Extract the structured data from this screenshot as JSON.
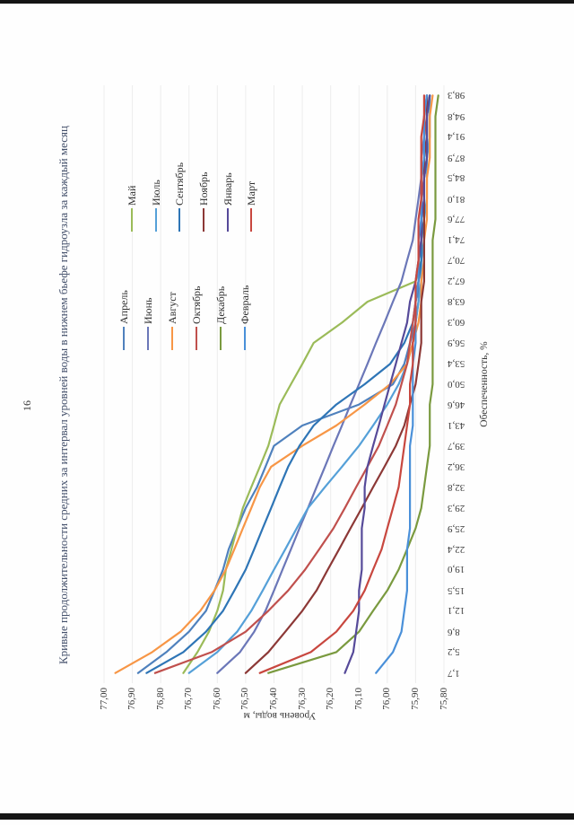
{
  "page": {
    "number": "16"
  },
  "chart": {
    "title": "Кривые продолжительности средних за интервал уровней воды в нижнем бьефе гидроузла за каждый месяц",
    "x_axis_title": "Обеспеченность, %",
    "y_axis_title": "Уровень воды, м"
  },
  "chart_data": {
    "type": "line",
    "title": "Кривые продолжительности средних за интервал уровней воды в нижнем бьефе гидроузла за каждый месяц",
    "xlabel": "Обеспеченность, %",
    "ylabel": "Уровень воды, м",
    "xlim": [
      0,
      100
    ],
    "ylim": [
      75.8,
      77.0
    ],
    "grid": "horizontal, faint",
    "legend_position": "inside top-right, two columns",
    "page_orientation": "landscape chart rotated 90° CCW on portrait page",
    "x": [
      1.7,
      5.2,
      8.6,
      12.1,
      15.5,
      19.0,
      22.4,
      25.9,
      29.3,
      32.8,
      36.2,
      39.7,
      43.1,
      46.6,
      50.0,
      53.4,
      56.9,
      60.3,
      63.8,
      67.2,
      70.7,
      74.1,
      77.6,
      81.0,
      84.5,
      87.9,
      91.4,
      94.8,
      98.3
    ],
    "x_tick_labels": [
      "1,7",
      "5,2",
      "8,6",
      "12,1",
      "15,5",
      "19,0",
      "22,4",
      "25,9",
      "29,3",
      "32,8",
      "36,2",
      "39,7",
      "43,1",
      "46,6",
      "50,0",
      "53,4",
      "56,9",
      "60,3",
      "63,8",
      "67,2",
      "70,7",
      "74,1",
      "77,6",
      "81,0",
      "84,5",
      "87,9",
      "91,4",
      "94,8",
      "98,3"
    ],
    "y_tick_values": [
      77.0,
      76.9,
      76.8,
      76.7,
      76.6,
      76.5,
      76.4,
      76.3,
      76.2,
      76.1,
      76.0,
      75.9,
      75.8
    ],
    "y_tick_labels": [
      "77,00",
      "76,90",
      "76,80",
      "76,70",
      "76,60",
      "76,50",
      "76,40",
      "76,30",
      "76,20",
      "76,10",
      "76,00",
      "75,90",
      "75,80"
    ],
    "series": [
      {
        "name": "Апрель",
        "color": "#4F81BD",
        "values": [
          76.88,
          76.78,
          76.7,
          76.64,
          76.61,
          76.58,
          76.56,
          76.53,
          76.5,
          76.46,
          76.43,
          76.4,
          76.3,
          76.1,
          75.98,
          75.94,
          75.92,
          75.9,
          75.89,
          75.89,
          75.88,
          75.88,
          75.88,
          75.87,
          75.87,
          75.87,
          75.86,
          75.86,
          75.86
        ]
      },
      {
        "name": "Май",
        "color": "#9BBB59",
        "values": [
          76.72,
          76.67,
          76.63,
          76.6,
          76.58,
          76.57,
          76.55,
          76.53,
          76.51,
          76.48,
          76.45,
          76.42,
          76.4,
          76.38,
          76.34,
          76.3,
          76.26,
          76.16,
          76.07,
          75.9,
          75.88,
          75.88,
          75.87,
          75.87,
          75.87,
          75.86,
          75.86,
          75.86,
          75.85
        ]
      },
      {
        "name": "Июнь",
        "color": "#6B77B8",
        "values": [
          76.6,
          76.52,
          76.47,
          76.43,
          76.4,
          76.37,
          76.34,
          76.31,
          76.28,
          76.25,
          76.22,
          76.19,
          76.16,
          76.13,
          76.1,
          76.07,
          76.04,
          76.01,
          75.98,
          75.95,
          75.93,
          75.91,
          75.9,
          75.89,
          75.88,
          75.88,
          75.87,
          75.87,
          75.86
        ]
      },
      {
        "name": "Июль",
        "color": "#55A0D8",
        "values": [
          76.7,
          76.6,
          76.53,
          76.48,
          76.44,
          76.4,
          76.36,
          76.32,
          76.28,
          76.22,
          76.16,
          76.1,
          76.05,
          76.0,
          75.96,
          75.93,
          75.91,
          75.9,
          75.89,
          75.88,
          75.88,
          75.87,
          75.87,
          75.86,
          75.86,
          75.86,
          75.85,
          75.85,
          75.85
        ]
      },
      {
        "name": "Август",
        "color": "#F79646",
        "values": [
          76.96,
          76.83,
          76.73,
          76.66,
          76.61,
          76.57,
          76.54,
          76.51,
          76.48,
          76.45,
          76.41,
          76.3,
          76.18,
          76.08,
          75.99,
          75.93,
          75.91,
          75.89,
          75.88,
          75.88,
          75.87,
          75.87,
          75.86,
          75.86,
          75.86,
          75.85,
          75.85,
          75.85,
          75.84
        ]
      },
      {
        "name": "Сентябрь",
        "color": "#2E75B6",
        "values": [
          76.85,
          76.72,
          76.64,
          76.58,
          76.54,
          76.5,
          76.47,
          76.44,
          76.41,
          76.38,
          76.35,
          76.31,
          76.26,
          76.18,
          76.08,
          75.99,
          75.94,
          75.91,
          75.9,
          75.89,
          75.88,
          75.88,
          75.87,
          75.87,
          75.87,
          75.86,
          75.86,
          75.86,
          75.85
        ]
      },
      {
        "name": "Октябрь",
        "color": "#C0504D",
        "values": [
          76.82,
          76.62,
          76.5,
          76.42,
          76.35,
          76.29,
          76.24,
          76.19,
          76.15,
          76.11,
          76.07,
          76.03,
          76.0,
          75.97,
          75.95,
          75.93,
          75.92,
          75.91,
          75.9,
          75.89,
          75.89,
          75.88,
          75.88,
          75.88,
          75.87,
          75.87,
          75.87,
          75.86,
          75.86
        ]
      },
      {
        "name": "Ноябрь",
        "color": "#8C3836",
        "values": [
          76.5,
          76.42,
          76.36,
          76.3,
          76.25,
          76.21,
          76.17,
          76.13,
          76.09,
          76.05,
          76.01,
          75.97,
          75.94,
          75.92,
          75.9,
          75.89,
          75.88,
          75.88,
          75.88,
          75.87,
          75.87,
          75.87,
          75.87,
          75.87,
          75.87,
          75.87,
          75.86,
          75.86,
          75.86
        ]
      },
      {
        "name": "Декабрь",
        "color": "#7A9A3F",
        "values": [
          76.42,
          76.18,
          76.1,
          76.05,
          76.0,
          75.96,
          75.93,
          75.9,
          75.88,
          75.87,
          75.86,
          75.85,
          75.85,
          75.85,
          75.84,
          75.84,
          75.84,
          75.84,
          75.84,
          75.84,
          75.84,
          75.84,
          75.83,
          75.83,
          75.83,
          75.83,
          75.83,
          75.83,
          75.82
        ]
      },
      {
        "name": "Январь",
        "color": "#564A99",
        "values": [
          76.15,
          76.12,
          76.11,
          76.1,
          76.1,
          76.09,
          76.09,
          76.09,
          76.08,
          76.08,
          76.07,
          76.05,
          76.03,
          76.01,
          75.99,
          75.97,
          75.95,
          75.93,
          75.92,
          75.9,
          75.89,
          75.88,
          75.88,
          75.87,
          75.87,
          75.86,
          75.86,
          75.86,
          75.85
        ]
      },
      {
        "name": "Февраль",
        "color": "#4A90D9",
        "values": [
          76.04,
          75.98,
          75.95,
          75.94,
          75.93,
          75.93,
          75.93,
          75.92,
          75.92,
          75.92,
          75.92,
          75.92,
          75.91,
          75.91,
          75.91,
          75.91,
          75.9,
          75.9,
          75.9,
          75.89,
          75.89,
          75.89,
          75.88,
          75.88,
          75.88,
          75.87,
          75.87,
          75.87,
          75.86
        ]
      },
      {
        "name": "Март",
        "color": "#C8473F",
        "values": [
          76.45,
          76.27,
          76.18,
          76.12,
          76.08,
          76.05,
          76.02,
          76.0,
          75.98,
          75.96,
          75.95,
          75.94,
          75.93,
          75.92,
          75.92,
          75.91,
          75.91,
          75.9,
          75.9,
          75.9,
          75.89,
          75.89,
          75.89,
          75.88,
          75.88,
          75.88,
          75.88,
          75.87,
          75.87
        ]
      }
    ]
  }
}
